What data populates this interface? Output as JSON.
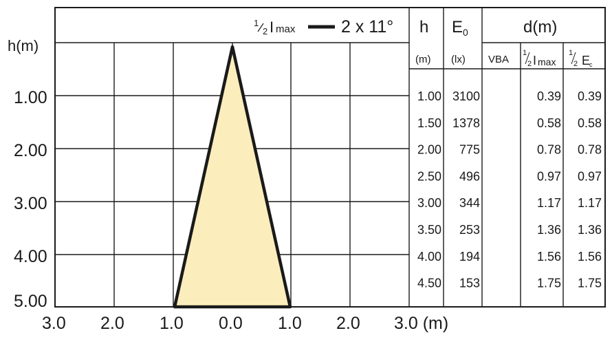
{
  "diagram": {
    "beam_legend": {
      "prefix": "1",
      "sub": "2",
      "symbol": "I",
      "sub2": "max",
      "value": "2 x 11°"
    },
    "axis_y_label": "h(m)",
    "y_ticks": [
      "1.00",
      "2.00",
      "3.00",
      "4.00",
      "5.00"
    ],
    "x_ticks": [
      "3.0",
      "2.0",
      "1.0",
      "0.0",
      "1.0",
      "2.0",
      "3.0 (m)"
    ],
    "beam_fill_color": "#fcedbd",
    "beam_stroke_color": "#1a1a1a"
  },
  "chart_data": {
    "type": "table",
    "beam_angle": "2 x 11°",
    "beam_width_at_h5_m": 1.0,
    "columns": [
      "h (m)",
      "E0 (lx)",
      "VBA",
      "1/2 Imax",
      "1/2 E"
    ],
    "headers": {
      "h": "h",
      "h_unit": "(m)",
      "e0": "E",
      "e0_sub": "0",
      "e0_unit": "(lx)",
      "d": "d(m)",
      "vba": "VBA",
      "half_imax": {
        "n": "1",
        "d": "2",
        "sym": "I",
        "sub": "max"
      },
      "half_e": {
        "n": "1",
        "d": "2",
        "sym": "E",
        "sub": "c"
      }
    },
    "rows": [
      {
        "h": "1.00",
        "e0": "3100",
        "vba": "",
        "d_imax": "0.39",
        "d_e": "0.39"
      },
      {
        "h": "1.50",
        "e0": "1378",
        "vba": "",
        "d_imax": "0.58",
        "d_e": "0.58"
      },
      {
        "h": "2.00",
        "e0": "775",
        "vba": "",
        "d_imax": "0.78",
        "d_e": "0.78"
      },
      {
        "h": "2.50",
        "e0": "496",
        "vba": "",
        "d_imax": "0.97",
        "d_e": "0.97"
      },
      {
        "h": "3.00",
        "e0": "344",
        "vba": "",
        "d_imax": "1.17",
        "d_e": "1.17"
      },
      {
        "h": "3.50",
        "e0": "253",
        "vba": "",
        "d_imax": "1.36",
        "d_e": "1.36"
      },
      {
        "h": "4.00",
        "e0": "194",
        "vba": "",
        "d_imax": "1.56",
        "d_e": "1.56"
      },
      {
        "h": "4.50",
        "e0": "153",
        "vba": "",
        "d_imax": "1.75",
        "d_e": "1.75"
      }
    ]
  }
}
